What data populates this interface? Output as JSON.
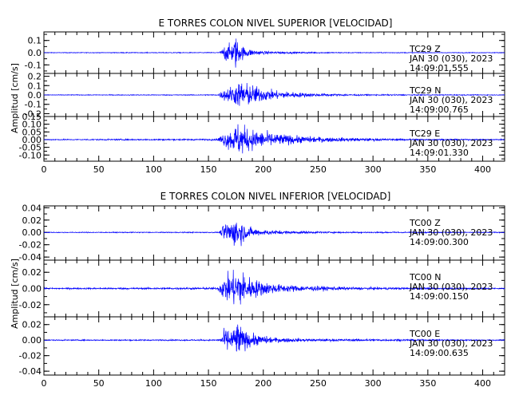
{
  "chart_data": [
    {
      "type": "line",
      "title": "E TORRES COLON NIVEL SUPERIOR [VELOCIDAD]",
      "ylabel": "Amplitud [cm/s]",
      "xlabel": "",
      "xlim": [
        0,
        420
      ],
      "x_ticks": [
        "0",
        "50",
        "100",
        "150",
        "200",
        "250",
        "300",
        "350",
        "400"
      ],
      "grid": false,
      "color": "#0000ff",
      "series": [
        {
          "name": "TC29 Z",
          "station": "TC29",
          "component": "Z",
          "date": "JAN 30 (030), 2023",
          "time": "14:09:01.555",
          "ylim": [
            -0.17,
            0.17
          ],
          "y_ticks": [
            "0.1",
            "0.0",
            "-0.1"
          ],
          "envelope": [
            [
              0,
              0.003
            ],
            [
              160,
              0.004
            ],
            [
              163,
              0.04
            ],
            [
              165,
              0.09
            ],
            [
              168,
              0.08
            ],
            [
              172,
              0.1
            ],
            [
              175,
              0.17
            ],
            [
              178,
              0.09
            ],
            [
              182,
              0.06
            ],
            [
              190,
              0.03
            ],
            [
              200,
              0.015
            ],
            [
              230,
              0.008
            ],
            [
              280,
              0.004
            ],
            [
              420,
              0.003
            ]
          ]
        },
        {
          "name": "TC29 N",
          "station": "TC29",
          "component": "N",
          "date": "JAN 30 (030), 2023",
          "time": "14:09:00.765",
          "ylim": [
            -0.23,
            0.23
          ],
          "y_ticks": [
            "0.2",
            "0.1",
            "0.0",
            "-0.1",
            "-0.2"
          ],
          "envelope": [
            [
              0,
              0.004
            ],
            [
              158,
              0.006
            ],
            [
              162,
              0.05
            ],
            [
              168,
              0.1
            ],
            [
              175,
              0.13
            ],
            [
              180,
              0.19
            ],
            [
              185,
              0.15
            ],
            [
              192,
              0.12
            ],
            [
              200,
              0.08
            ],
            [
              215,
              0.05
            ],
            [
              240,
              0.025
            ],
            [
              270,
              0.012
            ],
            [
              300,
              0.008
            ],
            [
              420,
              0.004
            ]
          ]
        },
        {
          "name": "TC29 E",
          "station": "TC29",
          "component": "E",
          "date": "JAN 30 (030), 2023",
          "time": "14:09:01.330",
          "ylim": [
            -0.14,
            0.15
          ],
          "y_ticks": [
            "0.15",
            "0.10",
            "0.05",
            "0.00",
            "-0.05",
            "-0.10"
          ],
          "envelope": [
            [
              0,
              0.004
            ],
            [
              158,
              0.006
            ],
            [
              162,
              0.04
            ],
            [
              168,
              0.07
            ],
            [
              175,
              0.11
            ],
            [
              178,
              0.14
            ],
            [
              185,
              0.09
            ],
            [
              195,
              0.07
            ],
            [
              210,
              0.05
            ],
            [
              230,
              0.03
            ],
            [
              260,
              0.018
            ],
            [
              300,
              0.01
            ],
            [
              340,
              0.006
            ],
            [
              420,
              0.004
            ]
          ]
        }
      ]
    },
    {
      "type": "line",
      "title": "E TORRES COLON NIVEL INFERIOR [VELOCIDAD]",
      "ylabel": "Amplitud [cm/s]",
      "xlabel": "",
      "xlim": [
        0,
        420
      ],
      "x_ticks": [
        "0",
        "50",
        "100",
        "150",
        "200",
        "250",
        "300",
        "350",
        "400"
      ],
      "grid": false,
      "color": "#0000ff",
      "series": [
        {
          "name": "TC00 Z",
          "station": "TC00",
          "component": "Z",
          "date": "JAN 30 (030), 2023",
          "time": "14:09:00.300",
          "ylim": [
            -0.045,
            0.043
          ],
          "y_ticks": [
            "0.04",
            "0.02",
            "0.00",
            "-0.02",
            "-0.04"
          ],
          "envelope": [
            [
              0,
              0.0008
            ],
            [
              160,
              0.001
            ],
            [
              163,
              0.012
            ],
            [
              166,
              0.022
            ],
            [
              170,
              0.02
            ],
            [
              174,
              0.026
            ],
            [
              177,
              0.036
            ],
            [
              180,
              0.022
            ],
            [
              185,
              0.012
            ],
            [
              195,
              0.006
            ],
            [
              220,
              0.003
            ],
            [
              260,
              0.0015
            ],
            [
              420,
              0.0008
            ]
          ]
        },
        {
          "name": "TC00 N",
          "station": "TC00",
          "component": "N",
          "date": "JAN 30 (030), 2023",
          "time": "14:09:00.150",
          "ylim": [
            -0.035,
            0.035
          ],
          "y_ticks": [
            "0.02",
            "0.00",
            "-0.02"
          ],
          "envelope": [
            [
              0,
              0.001
            ],
            [
              158,
              0.0015
            ],
            [
              162,
              0.012
            ],
            [
              166,
              0.02
            ],
            [
              172,
              0.024
            ],
            [
              177,
              0.033
            ],
            [
              183,
              0.022
            ],
            [
              190,
              0.015
            ],
            [
              200,
              0.01
            ],
            [
              215,
              0.006
            ],
            [
              240,
              0.004
            ],
            [
              280,
              0.002
            ],
            [
              420,
              0.001
            ]
          ]
        },
        {
          "name": "TC00 E",
          "station": "TC00",
          "component": "E",
          "date": "JAN 30 (030), 2023",
          "time": "14:09:00.635",
          "ylim": [
            -0.045,
            0.03
          ],
          "y_ticks": [
            "0.02",
            "0.00",
            "-0.02",
            "-0.04"
          ],
          "envelope": [
            [
              0,
              0.0008
            ],
            [
              160,
              0.001
            ],
            [
              163,
              0.012
            ],
            [
              166,
              0.02
            ],
            [
              170,
              0.015
            ],
            [
              174,
              0.02
            ],
            [
              177,
              0.03
            ],
            [
              181,
              0.016
            ],
            [
              186,
              0.012
            ],
            [
              195,
              0.008
            ],
            [
              210,
              0.004
            ],
            [
              240,
              0.002
            ],
            [
              420,
              0.0008
            ]
          ]
        }
      ]
    }
  ]
}
